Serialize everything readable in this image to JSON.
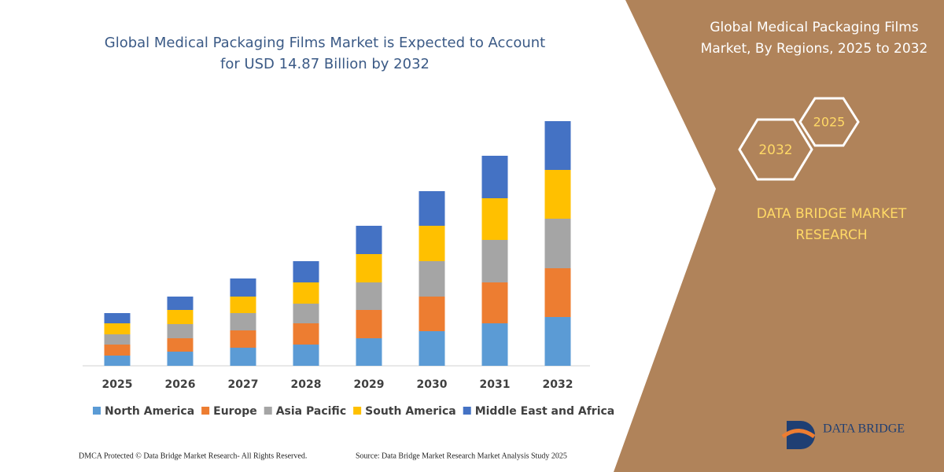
{
  "chart_data": {
    "type": "stacked_bar",
    "title": [
      "Global Medical Packaging Films Market is Expected to Account",
      "for USD 14.87 Billion by 2032"
    ],
    "categories": [
      "2025",
      "2026",
      "2027",
      "2028",
      "2029",
      "2030",
      "2031",
      "2032"
    ],
    "series": [
      {
        "name": "North America",
        "color": "#5b9bd5",
        "values": [
          13,
          18,
          23,
          27,
          35,
          44,
          54,
          62
        ]
      },
      {
        "name": "Europe",
        "color": "#ed7d31",
        "values": [
          14,
          17,
          22,
          27,
          36,
          44,
          52,
          62
        ]
      },
      {
        "name": "Asia Pacific",
        "color": "#a5a5a5",
        "values": [
          13,
          18,
          22,
          25,
          35,
          45,
          54,
          63
        ]
      },
      {
        "name": "South America",
        "color": "#ffc000",
        "values": [
          14,
          18,
          21,
          27,
          36,
          45,
          53,
          62
        ]
      },
      {
        "name": "Middle East and Africa",
        "color": "#4472c4",
        "values": [
          13,
          17,
          23,
          27,
          36,
          44,
          54,
          62
        ]
      }
    ]
  },
  "panel": {
    "title": [
      "Global Medical Packaging Films",
      "Market, By Regions, 2025 to 2032"
    ],
    "hex_large": "2032",
    "hex_small": "2025",
    "brand": [
      "DATA BRIDGE MARKET",
      "RESEARCH"
    ],
    "logo": "DATA BRIDGE"
  },
  "footer": {
    "left": "DMCA Protected © Data Bridge Market Research-  All Rights Reserved.",
    "right": "Source: Data Bridge Market Research  Market Analysis Study 2025"
  }
}
